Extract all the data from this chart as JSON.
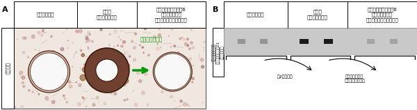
{
  "fig_width": 6.0,
  "fig_height": 1.58,
  "dpi": 100,
  "bg_color": "#ffffff",
  "A_label": "A",
  "B_label": "B",
  "col_header_1": "健康なマウス",
  "col_header_2": "通常の\n肺高血圧マウス",
  "col_header_3": "抗インターロイキン6\n受容体抗抗薬を\n投与した肺高血圧マウス",
  "row_header_A": "発病後期",
  "row_header_B": "肺に発現している\nインターロイキン21\nのタンパク量",
  "green_text": "肺高血圧が改善",
  "green_color": "#009900",
  "arrow1_text": "約2倍に増加",
  "arrow2_text": "健康なマウスと\n同レベルまで抑制",
  "header_fontsize": 5.0,
  "label_fontsize": 8,
  "small_fontsize": 5.5,
  "arrow_fontsize": 4.5,
  "row_fontsize": 5.0,
  "tissue_bg": "#e8d0c0",
  "vessel_wall_thin": "#c8b0a0",
  "vessel_wall_thick": "#8B5020",
  "vessel_lumen": "#f5f0ee",
  "vessel_outline": "#3a1808",
  "blot_bg": "#c8c8c8",
  "band_healthy": "#888888",
  "band_hph": "#1a1a1a",
  "band_treated": "#999999"
}
